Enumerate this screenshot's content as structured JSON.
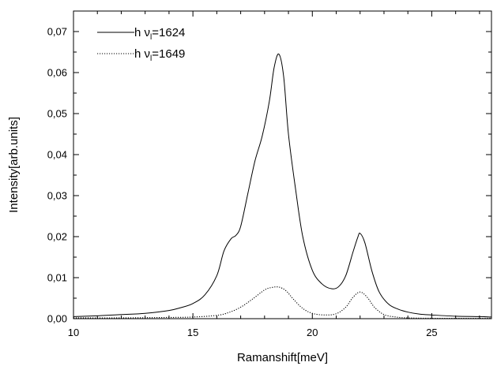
{
  "chart_data": {
    "type": "line",
    "xlabel": "Ramanshift[meV]",
    "ylabel": "Intensity[arb.units]",
    "xlim": [
      10,
      27.5
    ],
    "ylim": [
      0,
      0.075
    ],
    "x_ticks": [
      10,
      15,
      20,
      25
    ],
    "x_tick_labels": [
      "10",
      "15",
      "20",
      "25"
    ],
    "y_ticks": [
      0,
      0.01,
      0.02,
      0.03,
      0.04,
      0.05,
      0.06,
      0.07
    ],
    "y_tick_labels": [
      "0,00",
      "0,01",
      "0,02",
      "0,03",
      "0,04",
      "0,05",
      "0,06",
      "0,07"
    ],
    "grid": false,
    "legend_position": "top-left",
    "series": [
      {
        "name": "h ν_l=1624",
        "legend": {
          "prefix": "h ν",
          "sub": "l",
          "suffix": "=1624"
        },
        "style": "solid",
        "color": "#000000",
        "x": [
          10,
          11,
          12,
          13,
          14,
          14.5,
          15,
          15.5,
          16,
          16.3,
          16.6,
          16.8,
          17,
          17.3,
          17.6,
          17.9,
          18.2,
          18.4,
          18.6,
          18.8,
          19.0,
          19.3,
          19.6,
          20.0,
          20.4,
          20.8,
          21.1,
          21.4,
          21.7,
          21.9,
          22.0,
          22.2,
          22.5,
          22.8,
          23.2,
          23.6,
          24,
          24.5,
          25,
          26,
          27,
          27.5
        ],
        "y": [
          0.0005,
          0.0007,
          0.001,
          0.0013,
          0.002,
          0.0027,
          0.0037,
          0.0058,
          0.0105,
          0.0165,
          0.0195,
          0.0203,
          0.0225,
          0.0305,
          0.0385,
          0.0445,
          0.053,
          0.0612,
          0.0645,
          0.059,
          0.045,
          0.0315,
          0.02,
          0.0118,
          0.0085,
          0.0073,
          0.0078,
          0.0105,
          0.0162,
          0.0198,
          0.0208,
          0.0185,
          0.0115,
          0.0065,
          0.0035,
          0.0023,
          0.0016,
          0.0011,
          0.0009,
          0.0006,
          0.0005,
          0.0004
        ]
      },
      {
        "name": "h ν_l=1649",
        "legend": {
          "prefix": "h ν",
          "sub": "l",
          "suffix": "=1649"
        },
        "style": "dotted",
        "color": "#000000",
        "x": [
          10,
          12,
          14,
          15,
          16,
          16.5,
          17,
          17.5,
          18,
          18.3,
          18.6,
          18.9,
          19.2,
          19.6,
          20,
          20.5,
          21,
          21.4,
          21.7,
          22.0,
          22.3,
          22.6,
          23,
          23.5,
          24,
          25,
          27.5
        ],
        "y": [
          0.0002,
          0.0002,
          0.0003,
          0.0004,
          0.0008,
          0.0015,
          0.0028,
          0.0048,
          0.007,
          0.0076,
          0.0077,
          0.0068,
          0.0048,
          0.0025,
          0.0013,
          0.0009,
          0.0012,
          0.0028,
          0.0052,
          0.0065,
          0.0052,
          0.0028,
          0.001,
          0.0004,
          0.0002,
          0.0001,
          0.0001
        ]
      }
    ]
  }
}
